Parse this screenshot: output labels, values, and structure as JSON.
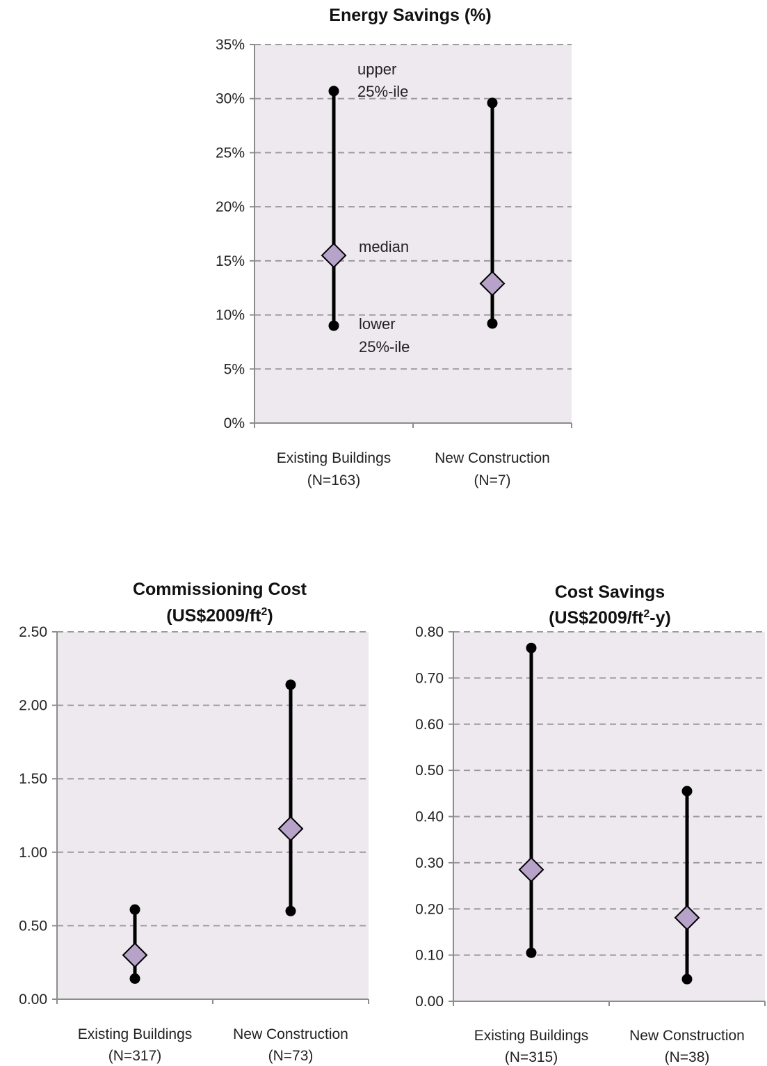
{
  "chart_data": [
    {
      "type": "range",
      "title": "Energy Savings (%)",
      "title_sup": "",
      "title_after": "",
      "y_ticks": [
        "0%",
        "5%",
        "10%",
        "15%",
        "20%",
        "25%",
        "30%",
        "35%"
      ],
      "ylim": [
        0,
        35
      ],
      "grid": true,
      "categories": [
        {
          "label": "Existing Buildings",
          "n": "(N=163)"
        },
        {
          "label": "New Construction",
          "n": "(N=7)"
        }
      ],
      "series": [
        {
          "category": "Existing Buildings",
          "lower": 9.0,
          "median": 15.5,
          "upper": 30.7
        },
        {
          "category": "New Construction",
          "lower": 9.2,
          "median": 12.9,
          "upper": 29.6
        }
      ],
      "annotations": {
        "upper_line1": "upper",
        "upper_line2": "25%-ile",
        "median": "median",
        "lower_line1": "lower",
        "lower_line2": "25%-ile"
      }
    },
    {
      "type": "range",
      "title": "Commissioning Cost",
      "title_line2_prefix": "(US$2009/ft",
      "title_sup": "2",
      "title_after": ")",
      "y_ticks": [
        "0.00",
        "0.50",
        "1.00",
        "1.50",
        "2.00",
        "2.50"
      ],
      "ylim": [
        0,
        2.5
      ],
      "grid": true,
      "categories": [
        {
          "label": "Existing Buildings",
          "n": "(N=317)"
        },
        {
          "label": "New Construction",
          "n": "(N=73)"
        }
      ],
      "series": [
        {
          "category": "Existing Buildings",
          "lower": 0.14,
          "median": 0.3,
          "upper": 0.61
        },
        {
          "category": "New Construction",
          "lower": 0.6,
          "median": 1.16,
          "upper": 2.14
        }
      ]
    },
    {
      "type": "range",
      "title": "Cost Savings",
      "title_line2_prefix": "(US$2009/ft",
      "title_sup": "2",
      "title_after": "-y)",
      "y_ticks": [
        "0.00",
        "0.10",
        "0.20",
        "0.30",
        "0.40",
        "0.50",
        "0.60",
        "0.70",
        "0.80"
      ],
      "ylim": [
        0,
        0.8
      ],
      "grid": true,
      "categories": [
        {
          "label": "Existing Buildings",
          "n": "(N=315)"
        },
        {
          "label": "New Construction",
          "n": "(N=38)"
        }
      ],
      "series": [
        {
          "category": "Existing Buildings",
          "lower": 0.105,
          "median": 0.285,
          "upper": 0.765
        },
        {
          "category": "New Construction",
          "lower": 0.048,
          "median": 0.181,
          "upper": 0.455
        }
      ]
    }
  ],
  "colors": {
    "plot_background": "#eee8ef",
    "median_marker": "#b7a2c9",
    "whisker": "#000000",
    "gridline": "#9a9a9a"
  }
}
